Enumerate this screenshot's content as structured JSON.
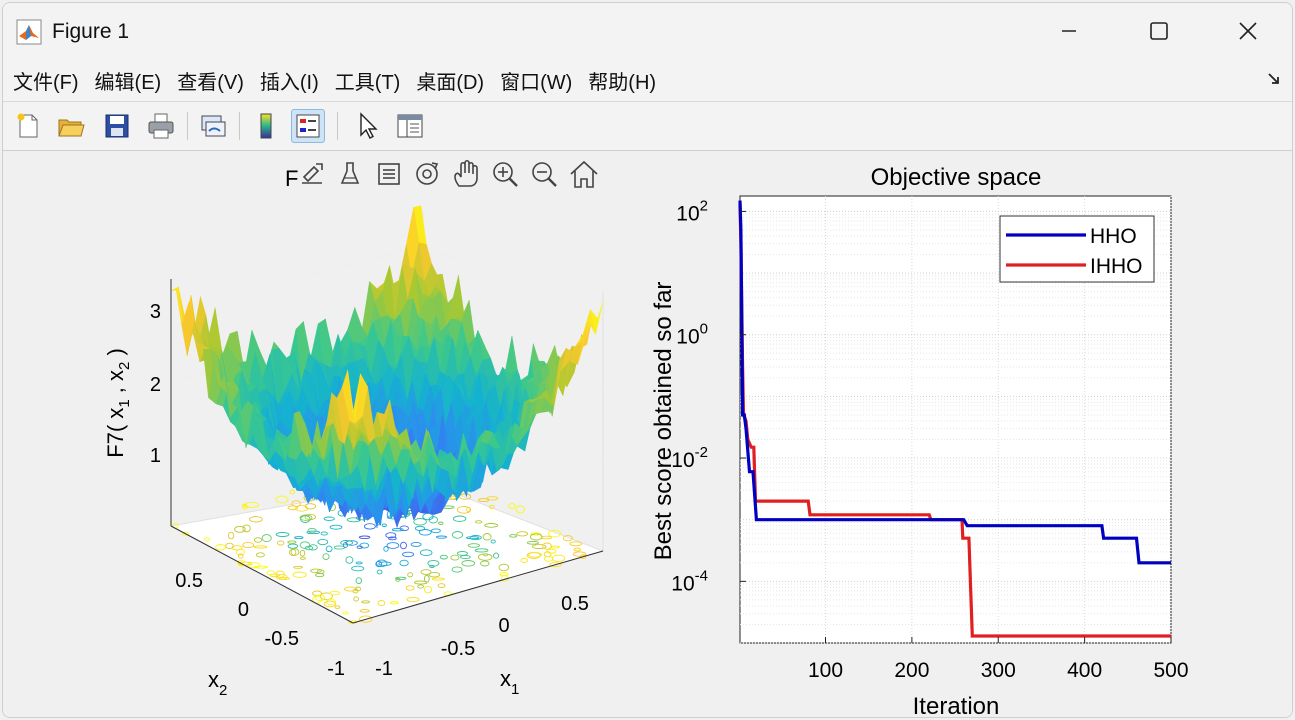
{
  "window": {
    "title": "Figure 1",
    "controls": [
      "minimize",
      "maximize",
      "close"
    ]
  },
  "menu": {
    "items": [
      "文件(F)",
      "编辑(E)",
      "查看(V)",
      "插入(I)",
      "工具(T)",
      "桌面(D)",
      "窗口(W)",
      "帮助(H)"
    ]
  },
  "toolbar": {
    "buttons": [
      {
        "name": "new-figure-icon"
      },
      {
        "name": "open-file-icon"
      },
      {
        "name": "save-icon"
      },
      {
        "name": "print-icon"
      },
      {
        "name": "link-plot-icon"
      },
      {
        "name": "colorbar-icon"
      },
      {
        "name": "legend-icon",
        "active": true
      },
      {
        "name": "pointer-icon"
      },
      {
        "name": "property-inspector-icon"
      }
    ]
  },
  "axes_toolbar": {
    "icons": [
      "export-icon",
      "brush-icon",
      "datatip-icon",
      "rotate-icon",
      "pan-hand-icon",
      "zoom-in-icon",
      "zoom-out-icon",
      "home-icon"
    ]
  },
  "left_plot": {
    "title_fragment": "F",
    "zlabel": "F7( x",
    "zlabel_sub1": "1",
    "zlabel_mid": " , x",
    "zlabel_sub2": "2",
    "zlabel_end": " )",
    "xlabel": "x",
    "xlabel_sub": "1",
    "ylabel": "x",
    "ylabel_sub": "2",
    "z_ticks": [
      "1",
      "2",
      "3"
    ],
    "x1_ticks": [
      "-1",
      "-0.5",
      "0",
      "0.5"
    ],
    "x2_ticks": [
      "-1",
      "-0.5",
      "0",
      "0.5"
    ]
  },
  "chart_data": {
    "type": "line",
    "title": "Objective space",
    "xlabel": "Iteration",
    "ylabel": "Best score obtained so far",
    "xlim": [
      1,
      500
    ],
    "ylim_log10": [
      -5,
      2.25
    ],
    "yscale": "log",
    "grid": true,
    "legend_position": "top-right",
    "x_ticks": [
      "100",
      "200",
      "300",
      "400",
      "500"
    ],
    "y_ticks": [
      {
        "base": "10",
        "exp": "2"
      },
      {
        "base": "10",
        "exp": "0"
      },
      {
        "base": "10",
        "exp": "-2"
      },
      {
        "base": "10",
        "exp": "-4"
      }
    ],
    "series": [
      {
        "name": "HHO",
        "color": "#0000c0",
        "points": [
          [
            1,
            150
          ],
          [
            2,
            50
          ],
          [
            4,
            0.05
          ],
          [
            6,
            0.05
          ],
          [
            8,
            0.03
          ],
          [
            12,
            0.006
          ],
          [
            16,
            0.006
          ],
          [
            20,
            0.001
          ],
          [
            160,
            0.001
          ],
          [
            260,
            0.001
          ],
          [
            264,
            0.0008
          ],
          [
            420,
            0.0008
          ],
          [
            422,
            0.0005
          ],
          [
            460,
            0.0005
          ],
          [
            463,
            0.0002
          ],
          [
            500,
            0.0002
          ]
        ]
      },
      {
        "name": "IHHO",
        "color": "#e02020",
        "points": [
          [
            1,
            130
          ],
          [
            2,
            30
          ],
          [
            4,
            0.3
          ],
          [
            5,
            0.05
          ],
          [
            8,
            0.04
          ],
          [
            10,
            0.02
          ],
          [
            14,
            0.015
          ],
          [
            17,
            0.015
          ],
          [
            19,
            0.002
          ],
          [
            80,
            0.002
          ],
          [
            82,
            0.0012
          ],
          [
            220,
            0.0012
          ],
          [
            222,
            0.001
          ],
          [
            258,
            0.001
          ],
          [
            259,
            0.0005
          ],
          [
            266,
            0.0005
          ],
          [
            270,
            1.3e-05
          ],
          [
            500,
            1.3e-05
          ]
        ]
      }
    ]
  }
}
